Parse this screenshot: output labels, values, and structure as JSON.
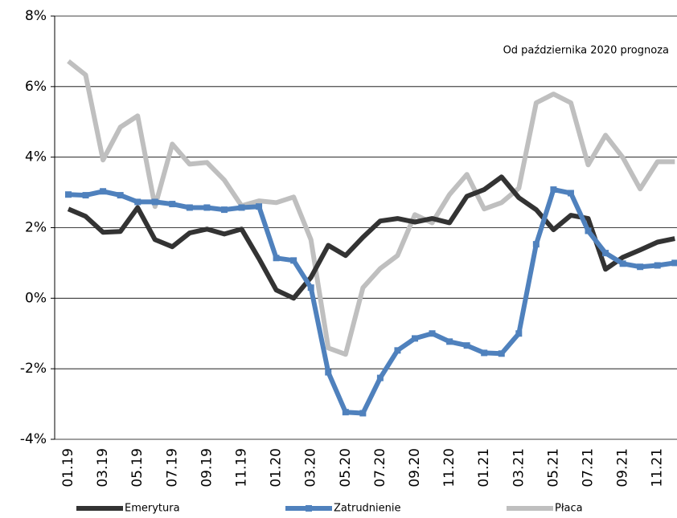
{
  "chart_data": {
    "type": "line",
    "annotation": "Od października 2020 prognoza",
    "categories": [
      "01.19",
      null,
      "03.19",
      null,
      "05.19",
      null,
      "07.19",
      null,
      "09.19",
      null,
      "11.19",
      null,
      "01.20",
      null,
      "03.20",
      null,
      "05.20",
      null,
      "07.20",
      null,
      "09.20",
      null,
      "11.20",
      null,
      "01.21",
      null,
      "03.21",
      null,
      "05.21",
      null,
      "07.21",
      null,
      "09.21",
      null,
      "11.21",
      null
    ],
    "series": [
      {
        "name": "Emerytura",
        "color": "#333333",
        "values": [
          2.53,
          2.32,
          1.87,
          1.89,
          2.57,
          1.66,
          1.46,
          1.85,
          1.96,
          1.82,
          1.96,
          1.12,
          0.23,
          0.0,
          0.59,
          1.5,
          1.21,
          1.73,
          2.19,
          2.26,
          2.16,
          2.26,
          2.14,
          2.89,
          3.08,
          3.44,
          2.85,
          2.51,
          1.94,
          2.35,
          2.26,
          0.82,
          1.16,
          1.37,
          1.59,
          1.69
        ]
      },
      {
        "name": "Zatrudnienie",
        "color": "#4f81bd",
        "marker": "square",
        "values": [
          2.94,
          2.92,
          3.03,
          2.92,
          2.73,
          2.73,
          2.67,
          2.57,
          2.57,
          2.51,
          2.57,
          2.6,
          1.14,
          1.07,
          0.3,
          -2.1,
          -3.23,
          -3.26,
          -2.26,
          -1.48,
          -1.14,
          -1.0,
          -1.23,
          -1.34,
          -1.55,
          -1.57,
          -1.0,
          1.53,
          3.08,
          2.98,
          1.91,
          1.28,
          0.98,
          0.89,
          0.93,
          1.0
        ]
      },
      {
        "name": "Płaca",
        "color": "#bfbfbf",
        "values": [
          6.72,
          6.33,
          3.92,
          4.85,
          5.17,
          2.6,
          4.37,
          3.8,
          3.85,
          3.35,
          2.62,
          2.76,
          2.71,
          2.87,
          1.66,
          -1.41,
          -1.59,
          0.3,
          0.84,
          1.21,
          2.37,
          2.14,
          2.94,
          3.51,
          2.53,
          2.71,
          3.12,
          5.54,
          5.79,
          5.54,
          3.78,
          4.62,
          3.99,
          3.1,
          3.87,
          3.87
        ]
      }
    ],
    "ylim": [
      -4,
      8
    ],
    "yticks": [
      {
        "value": -4,
        "label": "-4%"
      },
      {
        "value": -2,
        "label": "-2%"
      },
      {
        "value": 0,
        "label": "0%"
      },
      {
        "value": 2,
        "label": "2%"
      },
      {
        "value": 4,
        "label": "4%"
      },
      {
        "value": 6,
        "label": "6%"
      },
      {
        "value": 8,
        "label": "8%"
      }
    ],
    "grid": true,
    "legend": "bottom"
  }
}
